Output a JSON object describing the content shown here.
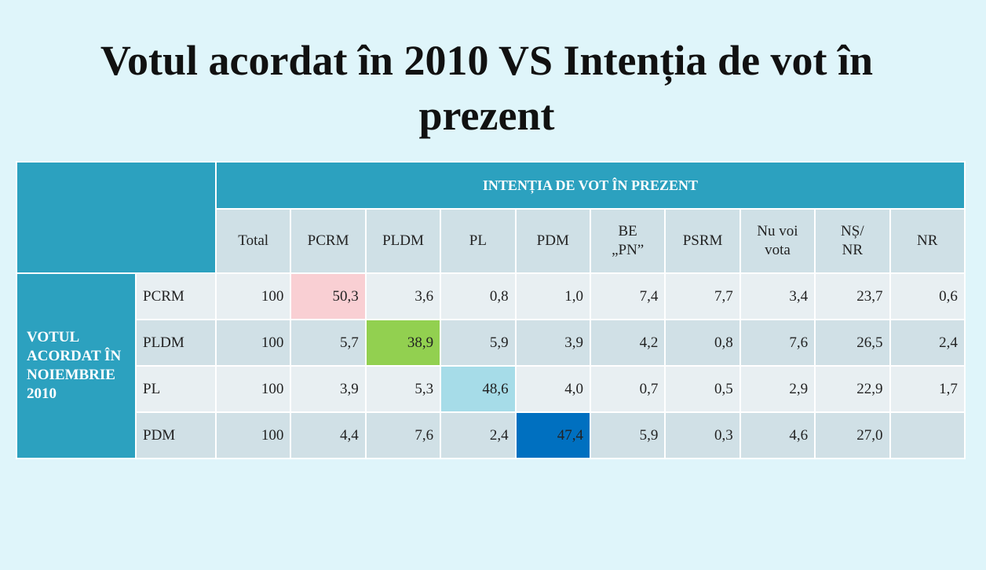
{
  "title": "Votul acordat în 2010 VS Intenția de vot în prezent",
  "table": {
    "column_group": "INTENȚIA DE VOT ÎN PREZENT",
    "columns": [
      "Total",
      "PCRM",
      "PLDM",
      "PL",
      "PDM",
      "BE\n„PN”",
      "PSRM",
      "Nu voi\nvota",
      "NȘ/\nNR",
      "NR"
    ],
    "row_group": "VOTUL ACORDAT ÎN NOIEMBRIE 2010",
    "rows": [
      {
        "label": "PCRM",
        "cells": [
          "100",
          "50,3",
          "3,6",
          "0,8",
          "1,0",
          "7,4",
          "7,7",
          "3,4",
          "23,7",
          "0,6"
        ]
      },
      {
        "label": "PLDM",
        "cells": [
          "100",
          "5,7",
          "38,9",
          "5,9",
          "3,9",
          "4,2",
          "0,8",
          "7,6",
          "26,5",
          "2,4"
        ]
      },
      {
        "label": "PL",
        "cells": [
          "100",
          "3,9",
          "5,3",
          "48,6",
          "4,0",
          "0,7",
          "0,5",
          "2,9",
          "22,9",
          "1,7"
        ]
      },
      {
        "label": "PDM",
        "cells": [
          "100",
          "4,4",
          "7,6",
          "2,4",
          "47,4",
          "5,9",
          "0,3",
          "4,6",
          "27,0",
          null
        ]
      }
    ]
  }
}
